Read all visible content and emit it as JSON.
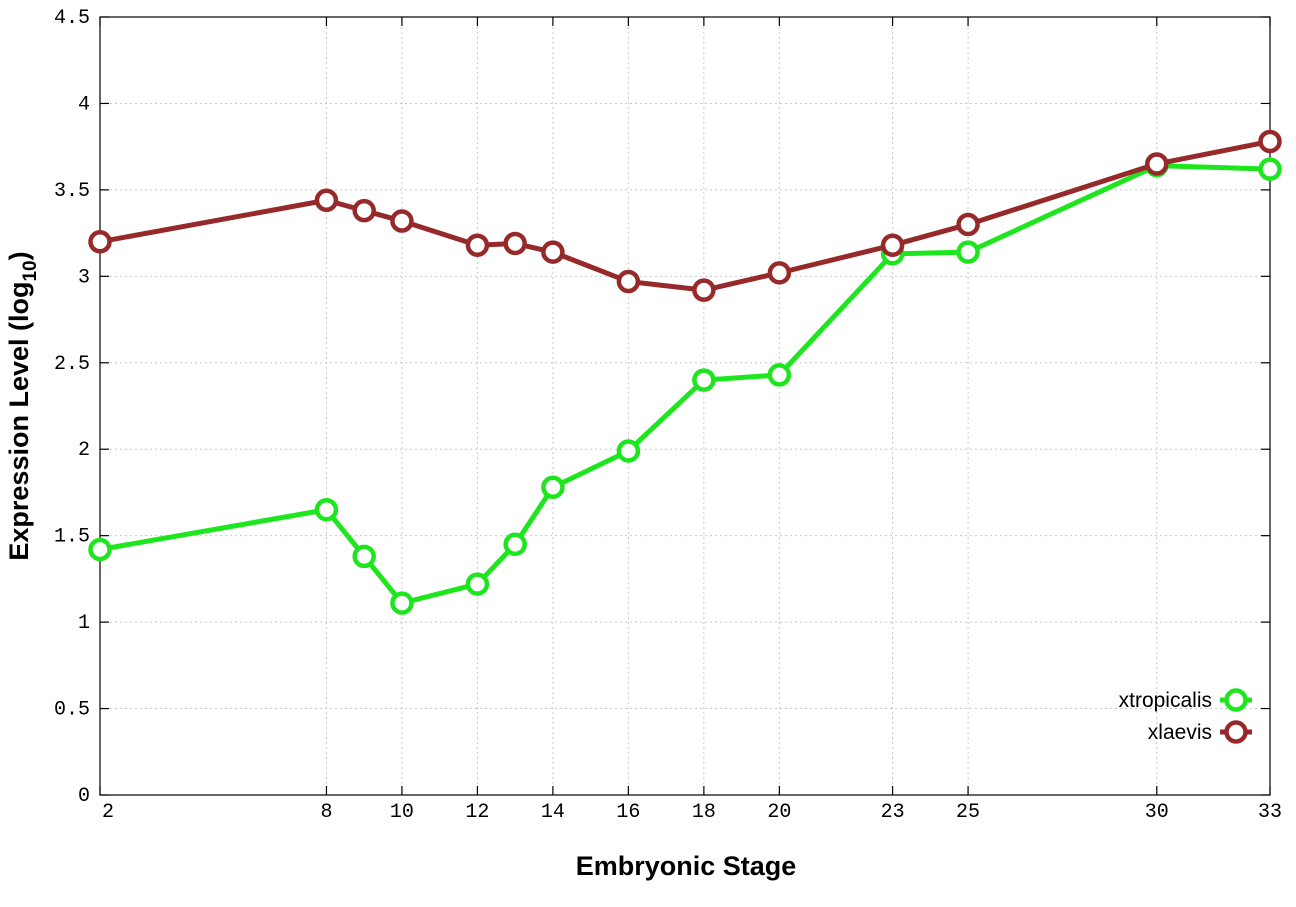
{
  "chart_data": {
    "type": "line",
    "xlabel": "Embryonic Stage",
    "ylabel": "Expression Level (log",
    "ylabel_sub": "10",
    "ylabel_end": ")",
    "xlim": [
      2,
      33
    ],
    "ylim": [
      0,
      4.5
    ],
    "x_ticks": [
      2,
      8,
      10,
      12,
      14,
      16,
      18,
      20,
      23,
      25,
      30,
      33
    ],
    "y_ticks": [
      0,
      0.5,
      1,
      1.5,
      2,
      2.5,
      3,
      3.5,
      4,
      4.5
    ],
    "y_tick_labels": [
      "0",
      "0.5",
      "1",
      "1.5",
      "2",
      "2.5",
      "3",
      "3.5",
      "4",
      "4.5"
    ],
    "grid": true,
    "legend_position": "bottom-right",
    "series": [
      {
        "name": "xtropicalis",
        "color": "#1ee61e",
        "x": [
          2,
          8,
          9,
          10,
          12,
          13,
          14,
          16,
          18,
          20,
          23,
          25,
          30,
          33
        ],
        "y": [
          1.42,
          1.65,
          1.38,
          1.11,
          1.22,
          1.45,
          1.78,
          1.99,
          2.4,
          2.43,
          3.13,
          3.14,
          3.64,
          3.62
        ]
      },
      {
        "name": "xlaevis",
        "color": "#962a2a",
        "x": [
          2,
          8,
          9,
          10,
          12,
          13,
          14,
          16,
          18,
          20,
          23,
          25,
          30,
          33
        ],
        "y": [
          3.2,
          3.44,
          3.38,
          3.32,
          3.18,
          3.19,
          3.14,
          2.97,
          2.92,
          3.02,
          3.18,
          3.3,
          3.65,
          3.78
        ]
      }
    ]
  }
}
